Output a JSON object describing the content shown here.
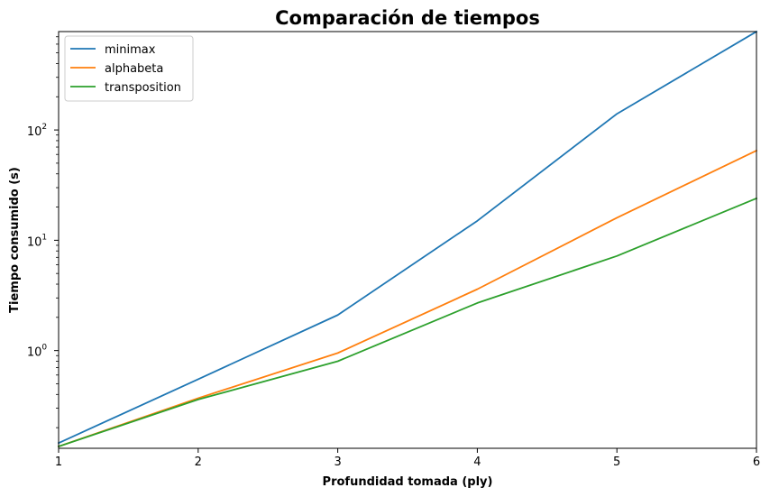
{
  "chart_data": {
    "type": "line",
    "title": "Comparación de tiempos",
    "xlabel": "Profundidad tomada (ply)",
    "ylabel": "Tiempo consumido (s)",
    "x": [
      1,
      2,
      3,
      4,
      5,
      6
    ],
    "xlim": [
      1,
      6
    ],
    "ylim": [
      0.13,
      780
    ],
    "yscale": "log",
    "grid": false,
    "legend_position": "top-left",
    "x_ticks": [
      "1",
      "2",
      "3",
      "4",
      "5",
      "6"
    ],
    "y_ticks": [
      {
        "value": 1,
        "base": "10",
        "exp": "0"
      },
      {
        "value": 10,
        "base": "10",
        "exp": "1"
      },
      {
        "value": 100,
        "base": "10",
        "exp": "2"
      }
    ],
    "series": [
      {
        "name": "minimax",
        "color": "#1f77b4",
        "values": [
          0.145,
          0.55,
          2.1,
          15,
          140,
          780
        ]
      },
      {
        "name": "alphabeta",
        "color": "#ff7f0e",
        "values": [
          0.135,
          0.37,
          0.95,
          3.6,
          16,
          65
        ]
      },
      {
        "name": "transposition",
        "color": "#2ca02c",
        "values": [
          0.135,
          0.36,
          0.8,
          2.7,
          7.2,
          24
        ]
      }
    ]
  }
}
